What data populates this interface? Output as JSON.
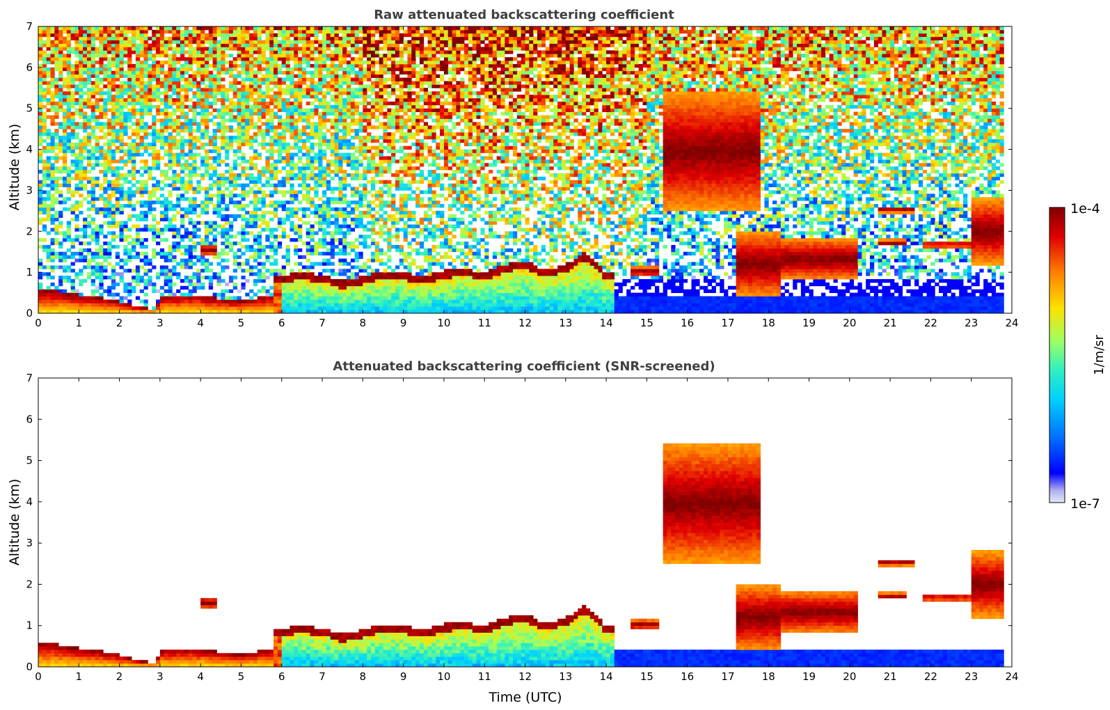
{
  "chart_data": [
    {
      "type": "heatmap",
      "title": "Raw attenuated backscattering coefficient",
      "xlabel": "",
      "ylabel": "Altitude (km)",
      "xlim": [
        0,
        24
      ],
      "ylim": [
        0,
        7
      ],
      "xticks": [
        "0",
        "1",
        "2",
        "3",
        "4",
        "5",
        "6",
        "7",
        "8",
        "9",
        "10",
        "11",
        "12",
        "13",
        "14",
        "15",
        "16",
        "17",
        "18",
        "19",
        "20",
        "21",
        "22",
        "23",
        "24"
      ],
      "yticks": [
        "0",
        "1",
        "2",
        "3",
        "4",
        "5",
        "6",
        "7"
      ],
      "screened": false,
      "data_end_time": 23.8,
      "features": [
        {
          "kind": "boundary_layer",
          "points": [
            [
              0,
              0.6
            ],
            [
              0.5,
              0.55
            ],
            [
              1,
              0.45
            ],
            [
              1.5,
              0.4
            ],
            [
              2,
              0.3
            ],
            [
              2.5,
              0.15
            ],
            [
              2.9,
              0.1
            ],
            [
              3,
              0.4
            ],
            [
              3.5,
              0.45
            ],
            [
              4,
              0.45
            ],
            [
              4.5,
              0.35
            ],
            [
              5,
              0.3
            ],
            [
              5.5,
              0.4
            ],
            [
              5.7,
              0.45
            ]
          ]
        },
        {
          "kind": "low_cloud_top",
          "points": [
            [
              6,
              0.85
            ],
            [
              6.5,
              0.9
            ],
            [
              7,
              0.85
            ],
            [
              7.5,
              0.7
            ],
            [
              8,
              0.8
            ],
            [
              8.5,
              0.95
            ],
            [
              9,
              0.9
            ],
            [
              9.5,
              0.8
            ],
            [
              10,
              0.95
            ],
            [
              10.5,
              1.0
            ],
            [
              11,
              0.9
            ],
            [
              11.5,
              1.1
            ],
            [
              12,
              1.2
            ],
            [
              12.5,
              0.95
            ],
            [
              13,
              1.1
            ],
            [
              13.5,
              1.4
            ],
            [
              14,
              0.9
            ]
          ]
        },
        {
          "kind": "cloud",
          "t0": 4.0,
          "t1": 4.4,
          "top": 1.7,
          "bottom": 1.4
        },
        {
          "kind": "cloud",
          "t0": 14.6,
          "t1": 15.3,
          "top": 1.15,
          "bottom": 0.9
        },
        {
          "kind": "cloud",
          "t0": 15.4,
          "t1": 17.8,
          "top": 5.4,
          "bottom": 2.5
        },
        {
          "kind": "cloud",
          "t0": 17.2,
          "t1": 18.3,
          "top": 2.0,
          "bottom": 0.4
        },
        {
          "kind": "cloud",
          "t0": 18.3,
          "t1": 20.2,
          "top": 1.85,
          "bottom": 0.8
        },
        {
          "kind": "cloud",
          "t0": 20.7,
          "t1": 21.6,
          "top": 2.6,
          "bottom": 2.45
        },
        {
          "kind": "cloud",
          "t0": 20.7,
          "t1": 21.4,
          "top": 1.8,
          "bottom": 1.65
        },
        {
          "kind": "cloud",
          "t0": 21.8,
          "t1": 23.0,
          "top": 1.75,
          "bottom": 1.6
        },
        {
          "kind": "cloud",
          "t0": 23.0,
          "t1": 23.8,
          "top": 2.8,
          "bottom": 1.2
        }
      ]
    },
    {
      "type": "heatmap",
      "title": "Attenuated backscattering coefficient (SNR-screened)",
      "xlabel": "Time (UTC)",
      "ylabel": "Altitude (km)",
      "xlim": [
        0,
        24
      ],
      "ylim": [
        0,
        7
      ],
      "xticks": [
        "0",
        "1",
        "2",
        "3",
        "4",
        "5",
        "6",
        "7",
        "8",
        "9",
        "10",
        "11",
        "12",
        "13",
        "14",
        "15",
        "16",
        "17",
        "18",
        "19",
        "20",
        "21",
        "22",
        "23",
        "24"
      ],
      "yticks": [
        "0",
        "1",
        "2",
        "3",
        "4",
        "5",
        "6",
        "7"
      ],
      "screened": true,
      "data_end_time": 23.8
    }
  ],
  "colorbar": {
    "label": "1/m/sr",
    "max_label": "1e-4",
    "min_label": "1e-7",
    "scale": "log",
    "colormap": "jet",
    "stops": [
      "#e8e8f8",
      "#b0b0f0",
      "#0000ff",
      "#0070ff",
      "#00d0ff",
      "#30f0c0",
      "#a0ff60",
      "#ffe000",
      "#ff8000",
      "#e00000",
      "#800000"
    ]
  }
}
